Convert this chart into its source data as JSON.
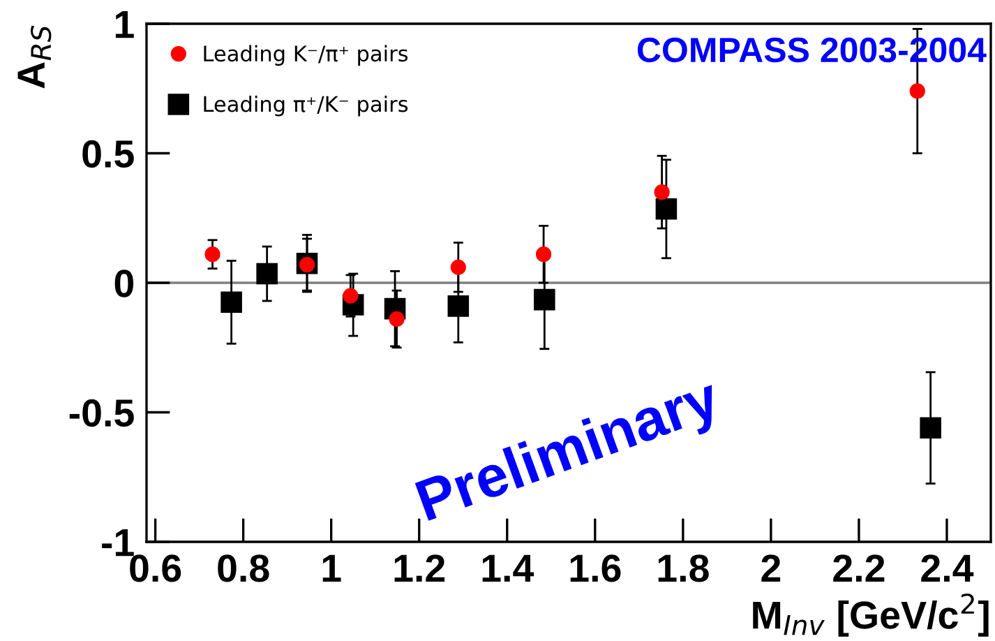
{
  "chart_data": {
    "type": "scatter",
    "xlabel": "M$_{Inv}$ [GeV/c$^{2}$]",
    "ylabel": "A$_{RS}$",
    "annotations": [
      "COMPASS 2003-2004",
      "Preliminary"
    ],
    "xlim": [
      0.58,
      2.5
    ],
    "xticks": [
      0.6,
      0.8,
      1,
      1.2,
      1.4,
      1.6,
      1.8,
      2,
      2.2,
      2.4
    ],
    "ylim": [
      -1,
      1
    ],
    "yticks": [
      -1,
      -0.5,
      0,
      0.5,
      1
    ],
    "grid": false,
    "legend": "top left",
    "ref_lines": [
      {
        "axis": "y",
        "value": 0,
        "color": "#808080"
      }
    ],
    "series": [
      {
        "name": "Leading K⁻/π⁺ pairs",
        "color": "#ff0000",
        "marker": "circle",
        "x": [
          0.73,
          0.945,
          1.044,
          1.149,
          1.289,
          1.483,
          1.752,
          2.333
        ],
        "values": [
          0.11,
          0.07,
          -0.05,
          -0.14,
          0.06,
          0.11,
          0.35,
          0.74
        ],
        "errors": [
          0.055,
          0.1,
          0.08,
          0.11,
          0.095,
          0.11,
          0.14,
          0.24
        ]
      },
      {
        "name": "Leading π⁺/K⁻ pairs",
        "color": "#000000",
        "marker": "square",
        "x": [
          0.773,
          0.854,
          0.945,
          1.05,
          1.145,
          1.289,
          1.485,
          1.762,
          2.363
        ],
        "values": [
          -0.075,
          0.035,
          0.075,
          -0.085,
          -0.1,
          -0.09,
          -0.065,
          0.285,
          -0.56
        ],
        "errors": [
          0.16,
          0.105,
          0.11,
          0.12,
          0.145,
          0.14,
          0.19,
          0.19,
          0.215
        ]
      }
    ]
  }
}
